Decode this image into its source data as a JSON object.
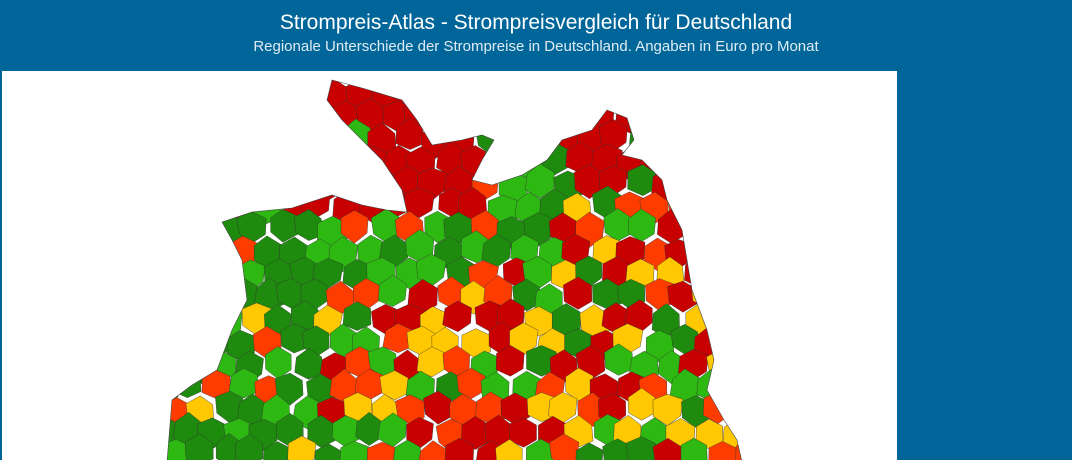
{
  "header": {
    "title": "Strompreis-Atlas - Strompreisvergleich für Deutschland",
    "subtitle": "Regionale Unterschiede der Strompreise in Deutschland. Angaben in Euro pro Monat"
  },
  "map": {
    "type": "choropleth",
    "region": "Deutschland (Nord- und Mitteldeutschland sichtbar)",
    "colors": {
      "very_high": "#c80000",
      "high": "#ff3c00",
      "medium": "#ffc800",
      "low": "#2db812",
      "very_low": "#1e8a0e"
    },
    "border_color": "#333333"
  }
}
